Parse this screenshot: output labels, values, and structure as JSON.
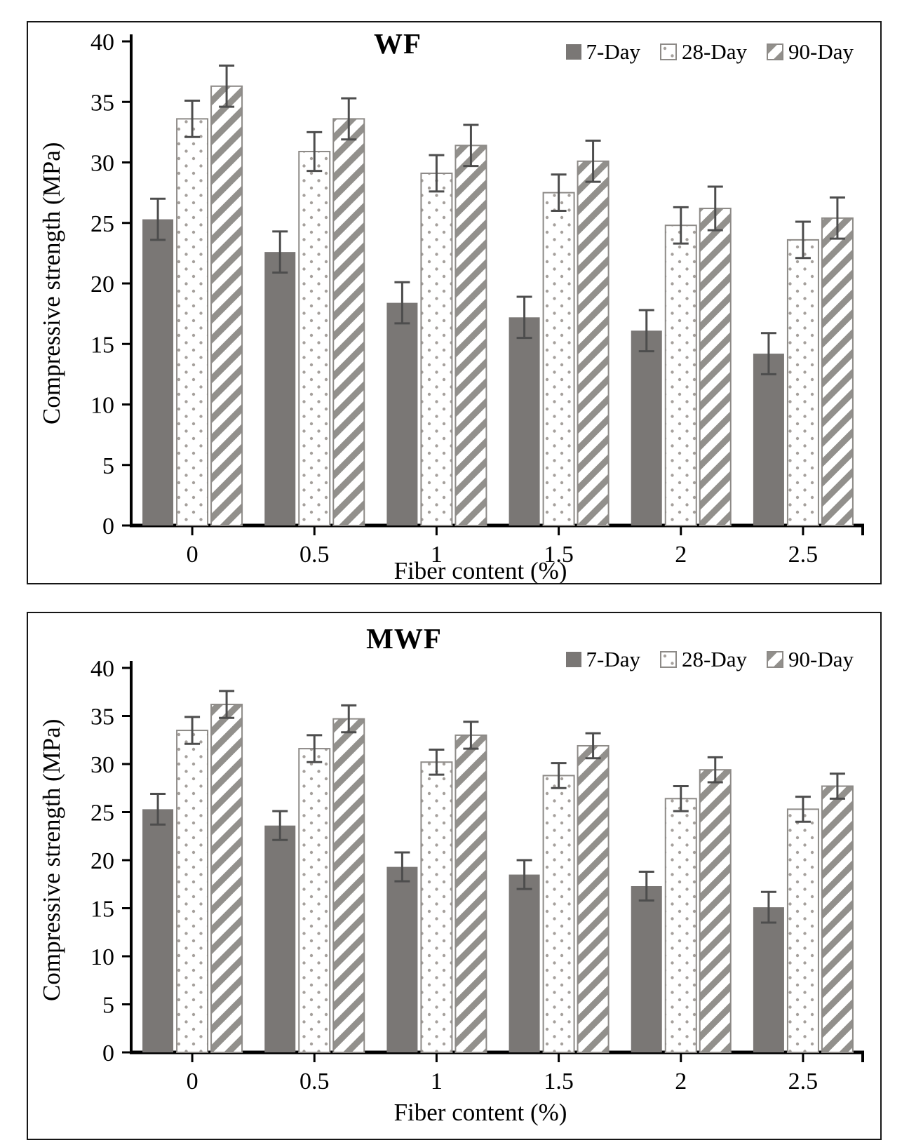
{
  "figure": {
    "description_labels": {
      "y_axis_label": "Compressive strength (MPa)",
      "x_axis_label": "Fiber content (%)"
    }
  },
  "colors": {
    "solid_bar": "#7a7775",
    "pattern_stroke": "#8d8a87",
    "hatch_gray": "#92908c",
    "dot_gray": "#a5a09c",
    "error_bar": "#4d4d4d",
    "axis": "#000000"
  },
  "chart_data": [
    {
      "type": "bar",
      "title": "WF",
      "xlabel": "Fiber content (%)",
      "ylabel": "Compressive strength (MPa)",
      "x_axis": {
        "label": "Fiber content (%)",
        "categories": [
          "0",
          "0.5",
          "1",
          "1.5",
          "2",
          "2.5"
        ]
      },
      "y_axis": {
        "label": "Compressive strength (MPa)",
        "min": 0,
        "max": 40,
        "tick_step": 5
      },
      "legend_position": "top-right",
      "grid": false,
      "series": [
        {
          "name": "7-Day",
          "style": "solid",
          "values": [
            25.3,
            22.6,
            18.4,
            17.2,
            16.1,
            14.2
          ],
          "errors": [
            1.7,
            1.7,
            1.7,
            1.7,
            1.7,
            1.7
          ]
        },
        {
          "name": "28-Day",
          "style": "dotted",
          "values": [
            33.6,
            30.9,
            29.1,
            27.5,
            24.8,
            23.6
          ],
          "errors": [
            1.5,
            1.6,
            1.5,
            1.5,
            1.5,
            1.5
          ]
        },
        {
          "name": "90-Day",
          "style": "hatched",
          "values": [
            36.3,
            33.6,
            31.4,
            30.1,
            26.2,
            25.4
          ],
          "errors": [
            1.7,
            1.7,
            1.7,
            1.7,
            1.8,
            1.7
          ]
        }
      ]
    },
    {
      "type": "bar",
      "title": "MWF",
      "xlabel": "Fiber content (%)",
      "ylabel": "Compressive strength (MPa)",
      "x_axis": {
        "label": "Fiber content (%)",
        "categories": [
          "0",
          "0.5",
          "1",
          "1.5",
          "2",
          "2.5"
        ]
      },
      "y_axis": {
        "label": "Compressive strength (MPa)",
        "min": 0,
        "max": 40,
        "tick_step": 5
      },
      "legend_position": "top-right",
      "grid": false,
      "series": [
        {
          "name": "7-Day",
          "style": "solid",
          "values": [
            25.3,
            23.6,
            19.3,
            18.5,
            17.3,
            15.1
          ],
          "errors": [
            1.6,
            1.5,
            1.5,
            1.5,
            1.5,
            1.6
          ]
        },
        {
          "name": "28-Day",
          "style": "dotted",
          "values": [
            33.5,
            31.6,
            30.2,
            28.8,
            26.4,
            25.3
          ],
          "errors": [
            1.4,
            1.4,
            1.3,
            1.3,
            1.3,
            1.3
          ]
        },
        {
          "name": "90-Day",
          "style": "hatched",
          "values": [
            36.2,
            34.7,
            33.0,
            31.9,
            29.4,
            27.7
          ],
          "errors": [
            1.4,
            1.4,
            1.4,
            1.3,
            1.3,
            1.3
          ]
        }
      ]
    }
  ]
}
